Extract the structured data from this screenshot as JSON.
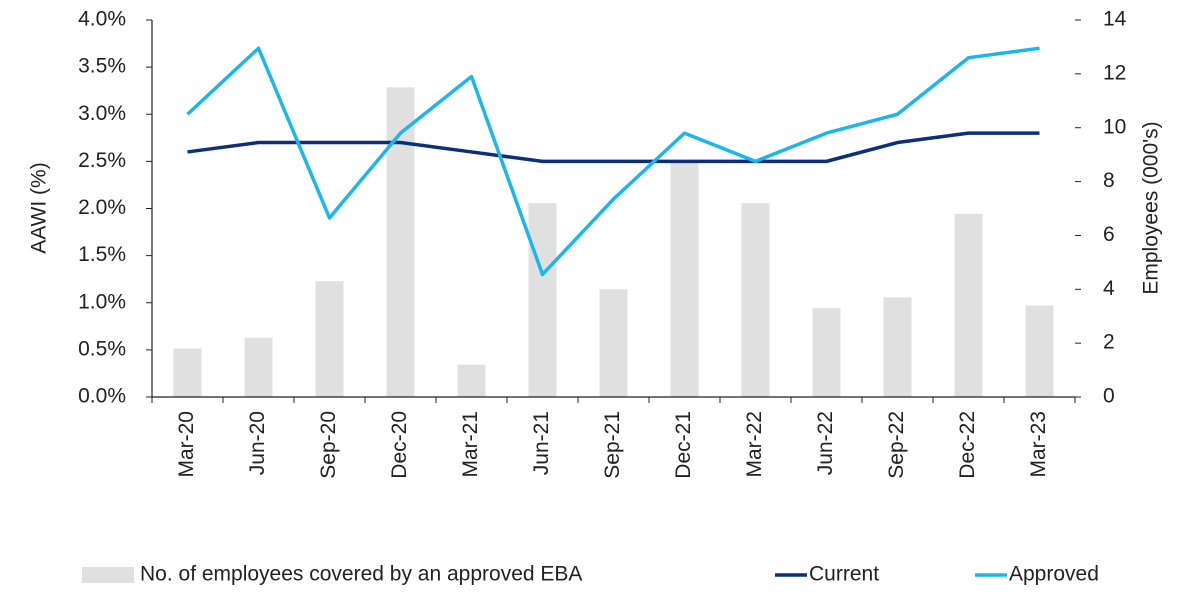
{
  "chart_data": {
    "type": "combo",
    "categories": [
      "Mar-20",
      "Jun-20",
      "Sep-20",
      "Dec-20",
      "Mar-21",
      "Jun-21",
      "Sep-21",
      "Dec-21",
      "Mar-22",
      "Jun-22",
      "Sep-22",
      "Dec-22",
      "Mar-23"
    ],
    "series": [
      {
        "name": "No. of employees covered by an approved EBA",
        "type": "bar",
        "axis": "y2",
        "color": "#e0e0e0",
        "values": [
          1.8,
          2.2,
          4.3,
          11.5,
          1.2,
          7.2,
          4.0,
          8.8,
          7.2,
          3.3,
          3.7,
          6.8,
          3.4
        ]
      },
      {
        "name": "Current",
        "type": "line",
        "color": "#0c2f7c",
        "values": [
          2.6,
          2.7,
          2.7,
          2.7,
          2.6,
          2.5,
          2.5,
          2.5,
          2.5,
          2.5,
          2.7,
          2.8,
          2.8
        ]
      },
      {
        "name": "Approved",
        "type": "line",
        "color": "#1bb7ec",
        "values": [
          3.0,
          3.7,
          1.9,
          2.8,
          3.4,
          1.3,
          2.1,
          2.8,
          2.5,
          2.8,
          3.0,
          3.6,
          3.7
        ]
      }
    ],
    "ylabel": "AAWI (%)",
    "y2label": "Employees (000's)",
    "ylim": [
      0,
      4.0
    ],
    "yticks": [
      {
        "value": 0,
        "label": "0.0%"
      },
      {
        "value": 0.5,
        "label": "0.5%"
      },
      {
        "value": 1.0,
        "label": "1.0%"
      },
      {
        "value": 1.5,
        "label": "1.5%"
      },
      {
        "value": 2.0,
        "label": "2.0%"
      },
      {
        "value": 2.5,
        "label": "2.5%"
      },
      {
        "value": 3.0,
        "label": "3.0%"
      },
      {
        "value": 3.5,
        "label": "3.5%"
      },
      {
        "value": 4.0,
        "label": "4.0%"
      }
    ],
    "y2lim": [
      0,
      14
    ],
    "y2ticks": [
      0,
      2,
      4,
      6,
      8,
      10,
      12,
      14
    ],
    "legend": "bottom"
  }
}
